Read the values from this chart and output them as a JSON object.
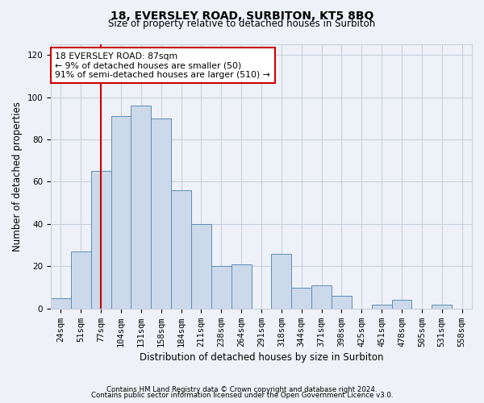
{
  "title": "18, EVERSLEY ROAD, SURBITON, KT5 8BQ",
  "subtitle": "Size of property relative to detached houses in Surbiton",
  "xlabel": "Distribution of detached houses by size in Surbiton",
  "ylabel": "Number of detached properties",
  "bar_color": "#ccd9ea",
  "bar_edge_color": "#5b8db8",
  "background_color": "#eef2f8",
  "grid_color": "#c8d0dc",
  "categories": [
    "24sqm",
    "51sqm",
    "77sqm",
    "104sqm",
    "131sqm",
    "158sqm",
    "184sqm",
    "211sqm",
    "238sqm",
    "264sqm",
    "291sqm",
    "318sqm",
    "344sqm",
    "371sqm",
    "398sqm",
    "425sqm",
    "451sqm",
    "478sqm",
    "505sqm",
    "531sqm",
    "558sqm"
  ],
  "values": [
    5,
    27,
    65,
    91,
    96,
    90,
    56,
    40,
    20,
    21,
    0,
    26,
    10,
    11,
    6,
    0,
    2,
    4,
    0,
    2,
    0
  ],
  "ylim": [
    0,
    125
  ],
  "yticks": [
    0,
    20,
    40,
    60,
    80,
    100,
    120
  ],
  "vline_index": 2,
  "vline_color": "#cc0000",
  "annotation_line1": "18 EVERSLEY ROAD: 87sqm",
  "annotation_line2": "← 9% of detached houses are smaller (50)",
  "annotation_line3": "91% of semi-detached houses are larger (510) →",
  "annotation_box_color": "#ffffff",
  "annotation_box_edge": "#cc0000",
  "footer_line1": "Contains HM Land Registry data © Crown copyright and database right 2024.",
  "footer_line2": "Contains public sector information licensed under the Open Government Licence v3.0."
}
